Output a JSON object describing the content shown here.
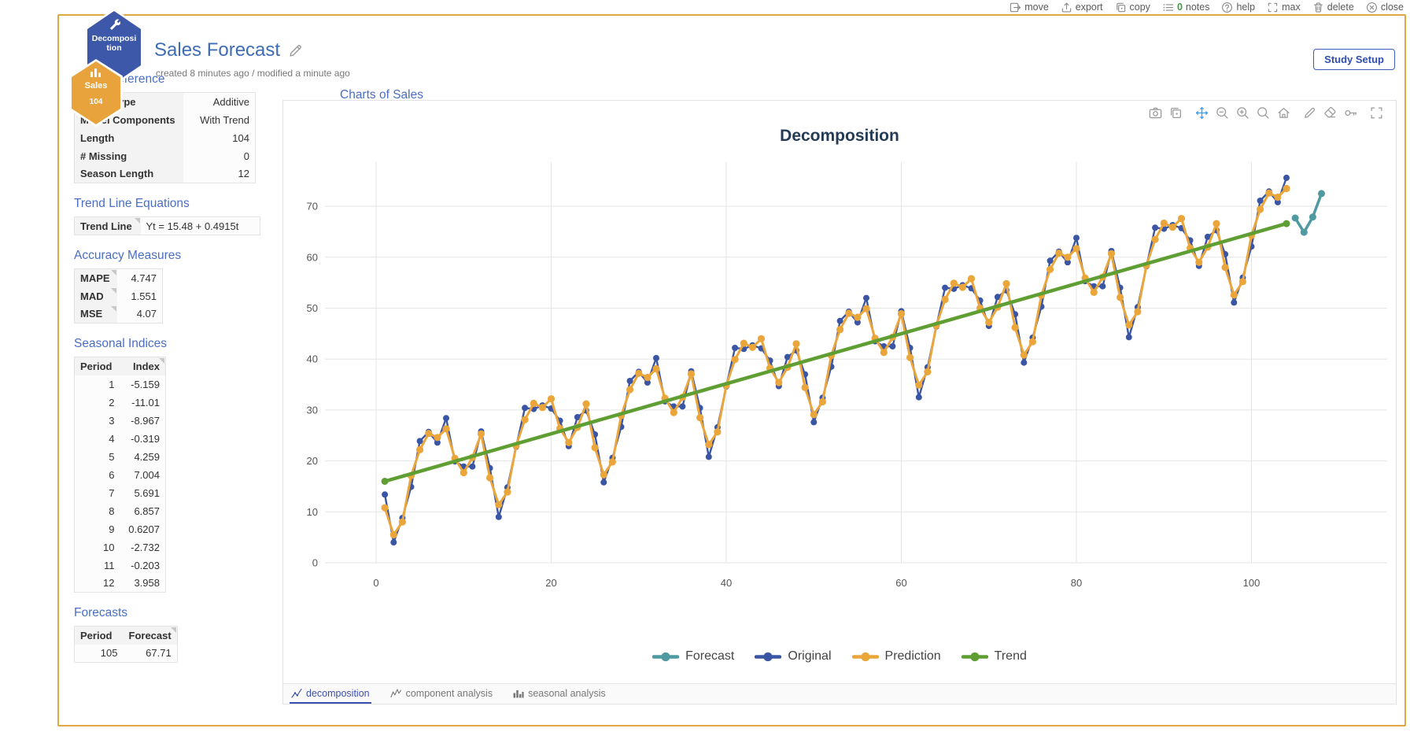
{
  "window_toolbar": {
    "items": [
      {
        "key": "move",
        "label": "move"
      },
      {
        "key": "export",
        "label": "export"
      },
      {
        "key": "copy",
        "label": "copy"
      },
      {
        "key": "notes",
        "label": "notes",
        "count": "0"
      },
      {
        "key": "help",
        "label": "help"
      },
      {
        "key": "max",
        "label": "max"
      },
      {
        "key": "delete",
        "label": "delete"
      },
      {
        "key": "close",
        "label": "close"
      }
    ]
  },
  "badges": {
    "tool_hexagon": {
      "label": "Decomposition",
      "color": "#3d57a9"
    },
    "data_hexagon": {
      "label": "Sales",
      "count": "104",
      "color": "#e8a33c"
    }
  },
  "study": {
    "title": "Sales Forecast",
    "subtitle": "created 8 minutes ago / modified a minute ago",
    "setup_button": "Study Setup"
  },
  "sidebar": {
    "quick_reference": {
      "heading": "Quick Reference",
      "rows": [
        [
          "Model Type",
          "Additive"
        ],
        [
          "Model Components",
          "With Trend"
        ],
        [
          "Length",
          "104"
        ],
        [
          "# Missing",
          "0"
        ],
        [
          "Season Length",
          "12"
        ]
      ]
    },
    "trend_line_equations": {
      "heading": "Trend Line Equations",
      "rows": [
        [
          "Trend Line",
          "Yt = 15.48 + 0.4915t"
        ]
      ]
    },
    "accuracy_measures": {
      "heading": "Accuracy Measures",
      "rows": [
        [
          "MAPE",
          "4.747"
        ],
        [
          "MAD",
          "1.551"
        ],
        [
          "MSE",
          "4.07"
        ]
      ]
    },
    "seasonal_indices": {
      "heading": "Seasonal Indices",
      "columns": [
        "Period",
        "Index"
      ],
      "rows": [
        [
          "1",
          "-5.159"
        ],
        [
          "2",
          "-11.01"
        ],
        [
          "3",
          "-8.967"
        ],
        [
          "4",
          "-0.319"
        ],
        [
          "5",
          "4.259"
        ],
        [
          "6",
          "7.004"
        ],
        [
          "7",
          "5.691"
        ],
        [
          "8",
          "6.857"
        ],
        [
          "9",
          "0.6207"
        ],
        [
          "10",
          "-2.732"
        ],
        [
          "11",
          "-0.203"
        ],
        [
          "12",
          "3.958"
        ]
      ]
    },
    "forecasts": {
      "heading": "Forecasts",
      "columns": [
        "Period",
        "Forecast"
      ],
      "rows": [
        [
          "105",
          "67.71"
        ]
      ]
    }
  },
  "chart_panel": {
    "heading": "Charts of Sales",
    "toolbar_groups": [
      [
        "camera",
        "copy-chart"
      ],
      [
        "pan",
        "zoom-out",
        "zoom-in",
        "box-zoom",
        "home"
      ],
      [
        "draw",
        "erase",
        "key"
      ],
      [
        "fullscreen"
      ]
    ],
    "active_tool": "pan",
    "tabs": [
      {
        "label": "decomposition",
        "active": true
      },
      {
        "label": "component analysis",
        "active": false
      },
      {
        "label": "seasonal analysis",
        "active": false
      }
    ]
  },
  "chart_data": {
    "type": "line",
    "title": "Decomposition",
    "xlabel": "",
    "ylabel": "",
    "x_ticks": [
      0,
      20,
      40,
      60,
      80,
      100
    ],
    "y_ticks": [
      0,
      10,
      20,
      30,
      40,
      50,
      60,
      70
    ],
    "xlim": [
      -4,
      112
    ],
    "ylim": [
      0,
      78.5
    ],
    "grid": true,
    "legend_position": "bottom",
    "legend": [
      {
        "label": "Forecast",
        "color": "#4f9aa1"
      },
      {
        "label": "Original",
        "color": "#3a55a4"
      },
      {
        "label": "Prediction",
        "color": "#eaa63b"
      },
      {
        "label": "Trend",
        "color": "#5f9e33"
      }
    ],
    "series": [
      {
        "name": "Original",
        "color": "#3a55a4",
        "x_start": 1,
        "values": [
          13.4,
          4.0,
          8.8,
          14.9,
          23.9,
          25.7,
          23.6,
          28.4,
          19.9,
          18.9,
          18.9,
          25.8,
          18.6,
          9.0,
          14.8,
          22.8,
          30.4,
          30.2,
          30.9,
          30.3,
          27.9,
          22.9,
          28.6,
          29.9,
          25.2,
          15.8,
          20.6,
          26.7,
          35.7,
          37.5,
          35.4,
          40.2,
          31.7,
          30.7,
          30.7,
          37.6,
          30.4,
          20.8,
          26.6,
          34.6,
          42.2,
          42.0,
          42.7,
          42.1,
          39.7,
          34.7,
          40.4,
          41.7,
          37.0,
          27.6,
          32.4,
          38.5,
          47.5,
          49.3,
          47.2,
          52.0,
          43.5,
          42.5,
          42.5,
          49.4,
          42.2,
          32.5,
          38.4,
          46.4,
          54.0,
          53.8,
          54.5,
          53.9,
          51.5,
          46.5,
          52.2,
          53.5,
          48.8,
          39.3,
          44.2,
          50.3,
          59.3,
          61.1,
          59.0,
          63.8,
          55.3,
          54.3,
          54.3,
          61.2,
          54.0,
          44.3,
          50.2,
          58.2,
          65.8,
          65.6,
          66.3,
          65.7,
          63.3,
          58.3,
          64.0,
          65.3,
          60.6,
          51.1,
          56.0,
          62.1,
          71.1,
          72.9,
          70.8,
          75.6
        ]
      },
      {
        "name": "Prediction",
        "color": "#eaa63b",
        "x_start": 1,
        "values": [
          10.8,
          5.5,
          8.0,
          17.1,
          22.2,
          25.4,
          24.6,
          26.3,
          20.5,
          17.7,
          20.7,
          25.3,
          16.7,
          11.4,
          13.9,
          23.0,
          28.1,
          31.3,
          30.5,
          32.2,
          26.4,
          23.6,
          26.6,
          31.2,
          22.6,
          17.3,
          19.8,
          28.9,
          34.0,
          37.2,
          36.4,
          38.1,
          32.3,
          29.5,
          32.5,
          37.1,
          28.5,
          23.2,
          25.7,
          34.8,
          39.9,
          43.1,
          42.3,
          44.0,
          38.2,
          35.4,
          38.4,
          43.0,
          34.4,
          29.1,
          31.6,
          40.7,
          45.8,
          49.0,
          48.2,
          49.9,
          44.1,
          41.3,
          44.3,
          48.9,
          40.3,
          34.9,
          37.5,
          46.6,
          51.7,
          54.9,
          54.1,
          55.8,
          50.0,
          47.2,
          50.2,
          54.8,
          46.2,
          40.8,
          43.4,
          52.5,
          57.6,
          60.8,
          60.0,
          61.7,
          55.9,
          53.1,
          56.1,
          60.7,
          52.1,
          46.7,
          49.3,
          58.4,
          63.5,
          66.7,
          65.9,
          67.6,
          61.8,
          59.0,
          62.0,
          66.6,
          58.0,
          52.6,
          55.2,
          64.3,
          69.4,
          72.6,
          71.8,
          73.5
        ]
      },
      {
        "name": "Trend",
        "color": "#5f9e33",
        "points": [
          [
            1,
            16.0
          ],
          [
            104,
            66.6
          ]
        ],
        "equation": "Yt = 15.48 + 0.4915t"
      },
      {
        "name": "Forecast",
        "color": "#4f9aa1",
        "x_start": 105,
        "values": [
          67.7,
          64.9,
          67.9,
          72.5
        ]
      }
    ]
  }
}
